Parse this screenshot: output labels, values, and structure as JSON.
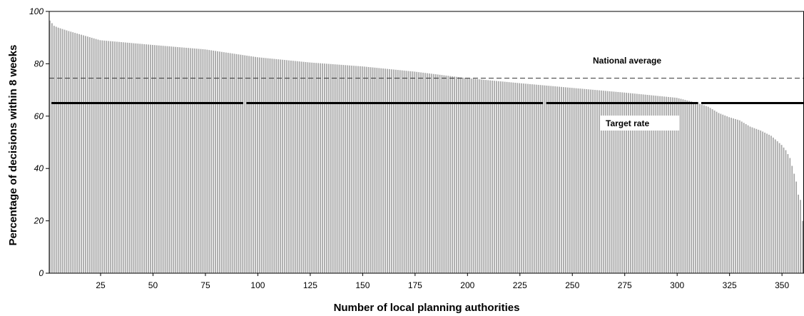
{
  "chart_data": {
    "type": "bar",
    "xlabel": "Number of local planning authorities",
    "ylabel": "Percentage of decisions within 8 weeks",
    "ylim": [
      0,
      100
    ],
    "xlim": [
      0,
      360
    ],
    "y_ticks": [
      "0",
      "20",
      "40",
      "60",
      "80",
      "100"
    ],
    "x_ticks": [
      "25",
      "50",
      "75",
      "100",
      "125",
      "150",
      "175",
      "200",
      "225",
      "250",
      "275",
      "300",
      "325",
      "350"
    ],
    "grid": false,
    "sorted": "descending",
    "n_bars": 360,
    "value_profile": {
      "x": [
        1,
        2,
        3,
        5,
        10,
        25,
        50,
        75,
        100,
        125,
        150,
        175,
        200,
        225,
        250,
        275,
        300,
        305,
        310,
        315,
        320,
        325,
        330,
        335,
        340,
        345,
        350,
        352,
        354,
        356,
        357,
        358,
        359,
        360
      ],
      "y": [
        96.5,
        95.5,
        94.5,
        93.8,
        92.5,
        89,
        87.2,
        85.5,
        82.5,
        80.5,
        79,
        77,
        74.5,
        72.6,
        70.8,
        69,
        67,
        66,
        65,
        63.6,
        61.2,
        59.6,
        58.4,
        56,
        54.5,
        52.5,
        49,
        47,
        44,
        38,
        35,
        30,
        28,
        20
      ]
    },
    "reference_lines": [
      {
        "name": "National average",
        "value": 74.5,
        "style": "dashed"
      },
      {
        "name": "Target rate",
        "value": 65,
        "style": "solid-thick"
      }
    ],
    "annotations": [
      "National average",
      "Target rate"
    ],
    "colors": {
      "bar": "#a8a8a8",
      "line": "#000000",
      "background": "#ffffff"
    }
  }
}
